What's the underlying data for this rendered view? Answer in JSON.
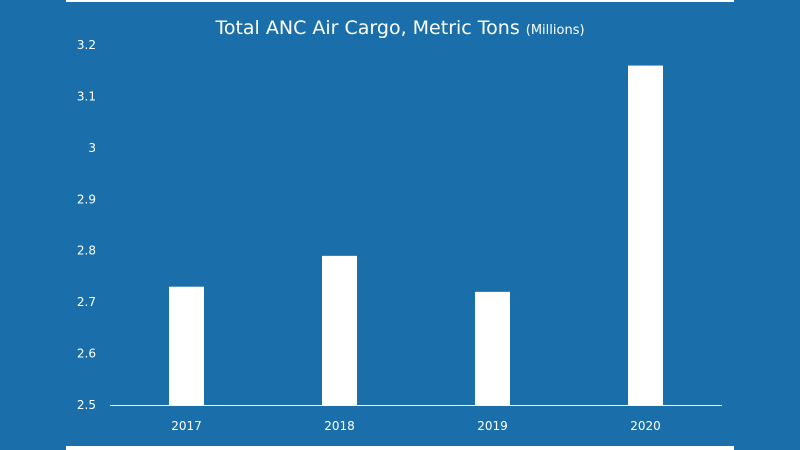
{
  "chart_data": {
    "type": "bar",
    "title": "Total ANC Air Cargo, Metric Tons",
    "title_unit": "(Millions)",
    "categories": [
      "2017",
      "2018",
      "2019",
      "2020"
    ],
    "values": [
      2.73,
      2.79,
      2.72,
      3.16
    ],
    "ylim": [
      2.5,
      3.2
    ],
    "yticks": [
      "2.5",
      "2.6",
      "2.7",
      "2.8",
      "2.9",
      "3",
      "3.1",
      "3.2"
    ],
    "xlabel": "",
    "ylabel": "",
    "grid": false,
    "legend": "none",
    "colors": {
      "background": "#1a6faa",
      "bar": "#ffffff",
      "text": "#ffffff"
    }
  }
}
